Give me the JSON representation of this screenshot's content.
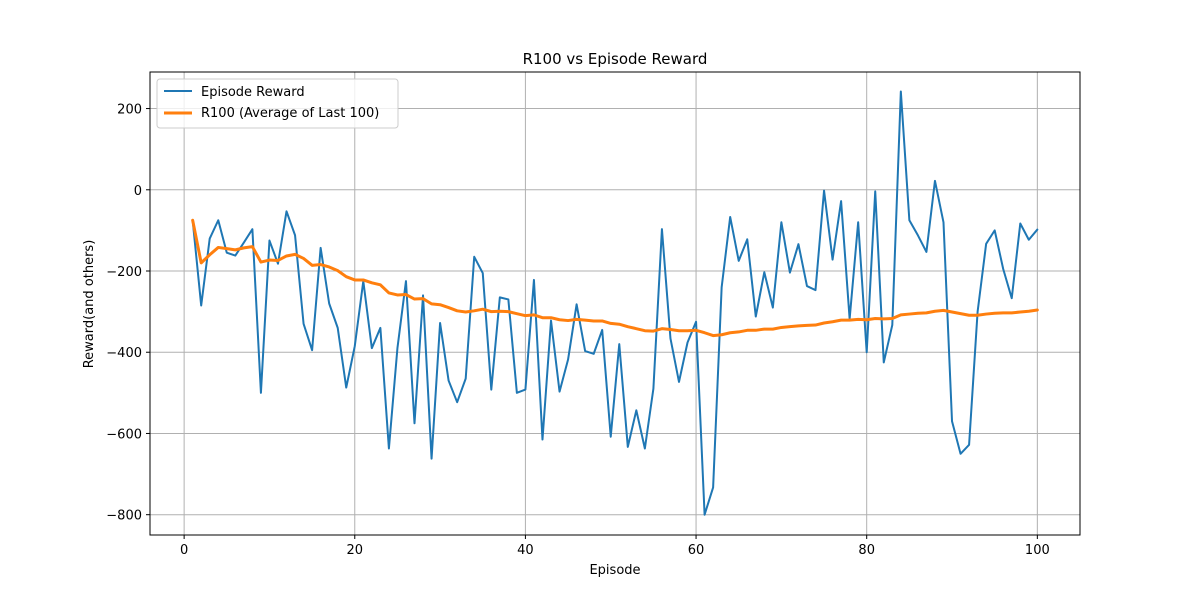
{
  "chart_data": {
    "type": "line",
    "title": "R100 vs Episode Reward",
    "xlabel": "Episode",
    "ylabel": "Reward(and others)",
    "xlim": [
      -4,
      105
    ],
    "ylim": [
      -850,
      290
    ],
    "xticks": [
      0,
      20,
      40,
      60,
      80,
      100
    ],
    "yticks": [
      -800,
      -600,
      -400,
      -200,
      0,
      200
    ],
    "ytick_labels": [
      "−800",
      "−600",
      "−400",
      "−200",
      "0",
      "200"
    ],
    "grid": true,
    "legend_position": "top-left",
    "x": [
      1,
      2,
      3,
      4,
      5,
      6,
      7,
      8,
      9,
      10,
      11,
      12,
      13,
      14,
      15,
      16,
      17,
      18,
      19,
      20,
      21,
      22,
      23,
      24,
      25,
      26,
      27,
      28,
      29,
      30,
      31,
      32,
      33,
      34,
      35,
      36,
      37,
      38,
      39,
      40,
      41,
      42,
      43,
      44,
      45,
      46,
      47,
      48,
      49,
      50,
      51,
      52,
      53,
      54,
      55,
      56,
      57,
      58,
      59,
      60,
      61,
      62,
      63,
      64,
      65,
      66,
      67,
      68,
      69,
      70,
      71,
      72,
      73,
      74,
      75,
      76,
      77,
      78,
      79,
      80,
      81,
      82,
      83,
      84,
      85,
      86,
      87,
      88,
      89,
      90,
      91,
      92,
      93,
      94,
      95,
      96,
      97,
      98,
      99,
      100
    ],
    "series": [
      {
        "name": "Episode Reward",
        "color": "#1f77b4",
        "values": [
          -75,
          -285,
          -120,
          -75,
          -155,
          -162,
          -130,
          -97,
          -500,
          -125,
          -182,
          -53,
          -112,
          -330,
          -395,
          -143,
          -280,
          -340,
          -487,
          -385,
          -225,
          -390,
          -340,
          -637,
          -390,
          -225,
          -575,
          -260,
          -662,
          -328,
          -470,
          -523,
          -465,
          -165,
          -205,
          -492,
          -265,
          -270,
          -500,
          -492,
          -222,
          -615,
          -322,
          -497,
          -418,
          -282,
          -397,
          -404,
          -345,
          -608,
          -380,
          -633,
          -543,
          -637,
          -490,
          -97,
          -366,
          -473,
          -376,
          -325,
          -800,
          -733,
          -240,
          -67,
          -175,
          -122,
          -312,
          -203,
          -290,
          -80,
          -204,
          -134,
          -237,
          -247,
          -2,
          -172,
          -28,
          -318,
          -80,
          -400,
          -4,
          -425,
          -333,
          242,
          -75,
          -112,
          -153,
          22,
          -80,
          -570,
          -650,
          -628,
          -300,
          -133,
          -100,
          -195,
          -267,
          -83,
          -123,
          -98
        ]
      },
      {
        "name": "R100 (Average of Last 100)",
        "color": "#ff7f0e",
        "values": [
          -75,
          -180,
          -160,
          -142,
          -145,
          -148,
          -143,
          -140,
          -178,
          -173,
          -174,
          -163,
          -159,
          -169,
          -186,
          -184,
          -190,
          -199,
          -214,
          -222,
          -222,
          -229,
          -234,
          -254,
          -259,
          -258,
          -269,
          -268,
          -281,
          -283,
          -290,
          -298,
          -301,
          -298,
          -294,
          -300,
          -299,
          -300,
          -305,
          -310,
          -308,
          -315,
          -315,
          -320,
          -322,
          -319,
          -321,
          -323,
          -323,
          -329,
          -331,
          -337,
          -342,
          -347,
          -348,
          -342,
          -344,
          -347,
          -347,
          -346,
          -352,
          -359,
          -357,
          -352,
          -350,
          -346,
          -346,
          -343,
          -343,
          -339,
          -337,
          -335,
          -334,
          -333,
          -328,
          -325,
          -321,
          -321,
          -319,
          -320,
          -317,
          -318,
          -317,
          -308,
          -306,
          -304,
          -303,
          -299,
          -297,
          -301,
          -305,
          -309,
          -309,
          -306,
          -304,
          -303,
          -303,
          -301,
          -299,
          -296
        ]
      }
    ]
  }
}
